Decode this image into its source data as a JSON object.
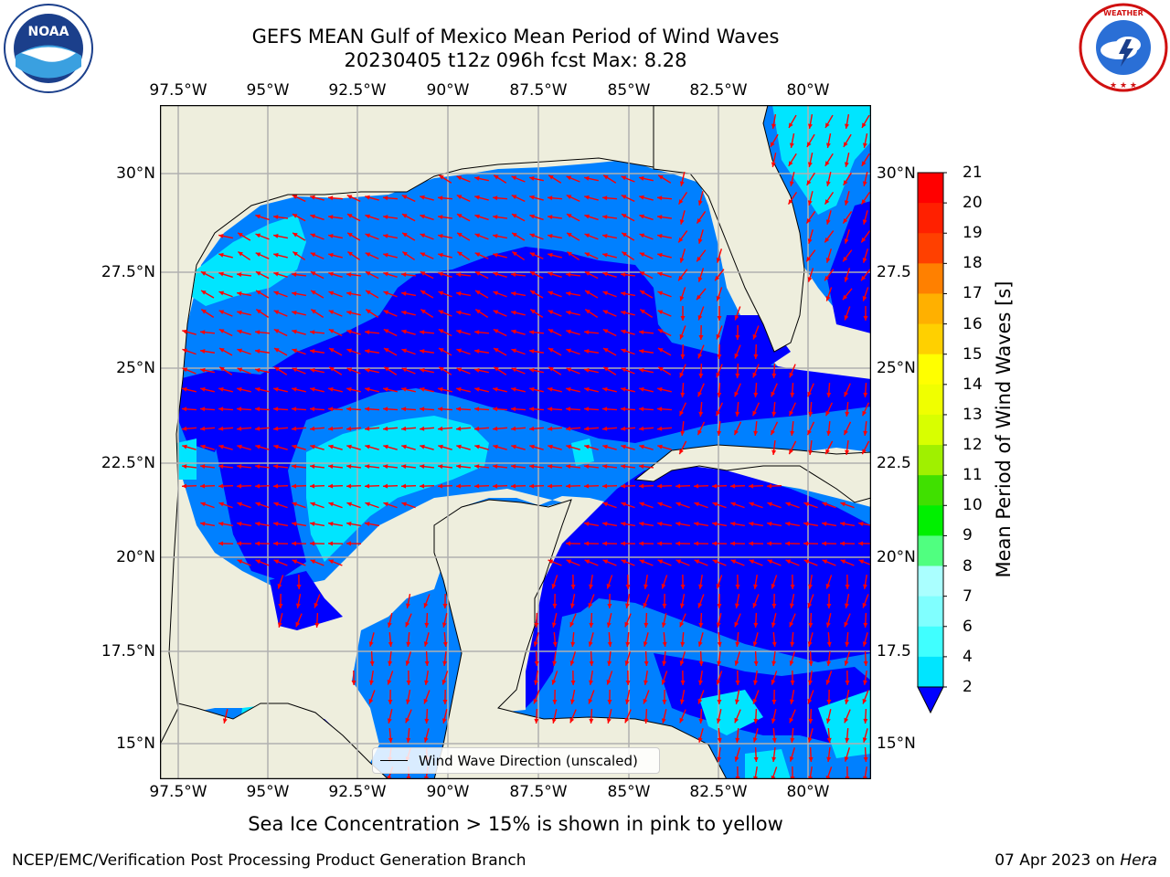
{
  "header": {
    "title_line1": "GEFS MEAN Gulf of Mexico Mean Period of Wind Waves",
    "title_line2": "20230405 t12z 096h fcst   Max: 8.28"
  },
  "axes": {
    "lon_ticks": [
      "97.5°W",
      "95°W",
      "92.5°W",
      "90°W",
      "87.5°W",
      "85°W",
      "82.5°W",
      "80°W"
    ],
    "lat_ticks": [
      "30°N",
      "27.5°N",
      "25°N",
      "22.5°N",
      "20°N",
      "17.5°N",
      "15°N"
    ],
    "lat_ticks_right": [
      "30°N",
      "27.5",
      "25°N",
      "22.5",
      "20°N",
      "17.5",
      "15°N"
    ]
  },
  "colorbar": {
    "label": "Mean Period of Wind Waves [s]",
    "ticks": [
      "2",
      "4",
      "6",
      "7",
      "8",
      "9",
      "10",
      "11",
      "12",
      "13",
      "14",
      "15",
      "16",
      "17",
      "18",
      "19",
      "20",
      "21"
    ],
    "colors": [
      "#0000ff",
      "#0080ff",
      "#00e5ff",
      "#40ffff",
      "#80ffff",
      "#aaffff",
      "#50ff80",
      "#00f000",
      "#40e000",
      "#a0f000",
      "#d8ff00",
      "#f0ff00",
      "#ffff00",
      "#ffd000",
      "#ffb000",
      "#ff8000",
      "#ff4000",
      "#ff2000",
      "#ff0000"
    ]
  },
  "legend": {
    "label": "Wind Wave Direction (unscaled)"
  },
  "subtitle": "Sea Ice Concentration > 15% is shown in pink to yellow",
  "footer": {
    "left": "NCEP/EMC/Verification Post Processing Product Generation Branch",
    "right_date": "07 Apr 2023 on ",
    "right_machine": "Hera"
  },
  "logos": {
    "noaa_text": "NOAA",
    "noaa_ring": "NATIONAL OCEANIC AND ATMOSPHERIC ADMINISTRATION · U.S. DEPARTMENT OF COMMERCE",
    "nws_ring": "NATIONAL WEATHER SERVICE"
  },
  "map_colors": {
    "land": "#eeeedd",
    "level_2_4": "#0080ff",
    "level_4_6": "#00e5ff",
    "level_0_2": "#0000ff",
    "arrow": "#ff0000"
  }
}
